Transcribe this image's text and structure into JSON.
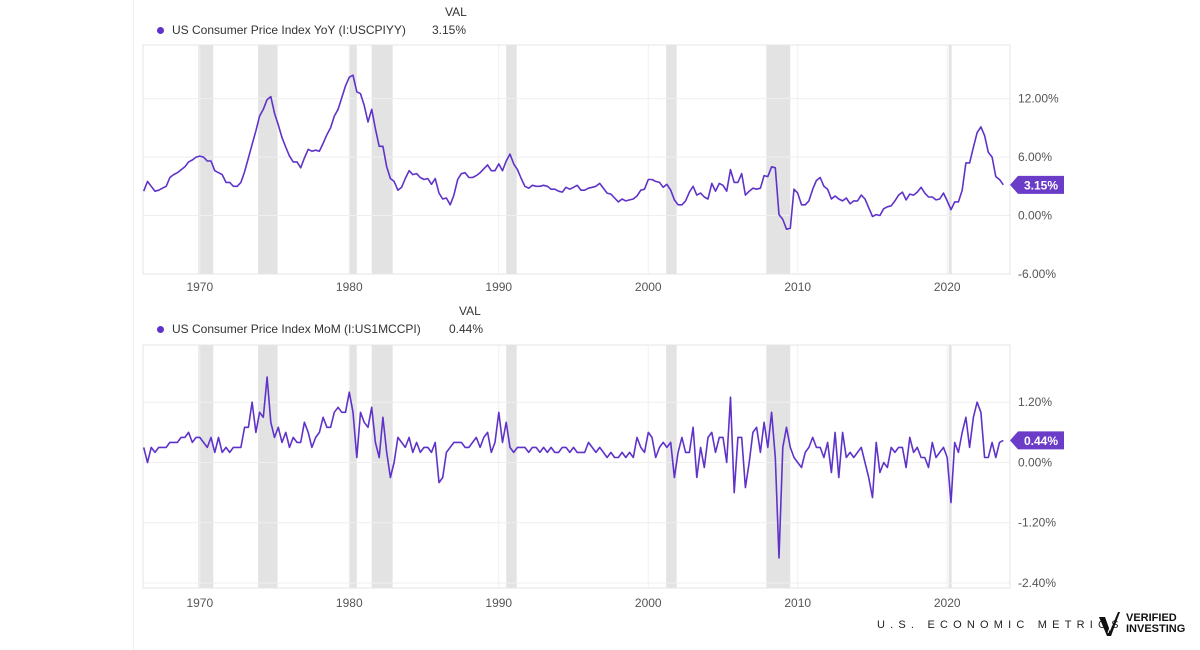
{
  "chart_data": [
    {
      "type": "line",
      "legend_header": "VAL",
      "series": [
        {
          "name": "US Consumer Price Index YoY (I:USCPIYY)",
          "current_value": "3.15%",
          "color": "#5f33c9",
          "x_start": 1966.25,
          "x_step": 0.25,
          "values": [
            2.5,
            3.5,
            3.0,
            2.5,
            2.6,
            2.8,
            3.0,
            3.9,
            4.2,
            4.4,
            4.7,
            5.0,
            5.5,
            5.7,
            6.0,
            6.1,
            6.0,
            5.6,
            5.6,
            4.6,
            4.4,
            4.2,
            3.4,
            3.4,
            3.0,
            3.0,
            3.4,
            4.5,
            5.9,
            7.3,
            8.7,
            10.2,
            10.9,
            11.9,
            12.2,
            10.5,
            9.3,
            8.0,
            7.0,
            6.1,
            5.5,
            5.5,
            4.9,
            5.9,
            6.8,
            6.6,
            6.7,
            6.6,
            7.4,
            8.3,
            9.0,
            10.2,
            10.9,
            12.1,
            13.3,
            14.2,
            14.4,
            12.7,
            12.5,
            11.3,
            9.6,
            10.9,
            8.9,
            7.1,
            7.1,
            5.0,
            3.8,
            3.5,
            2.6,
            2.9,
            3.8,
            4.6,
            4.2,
            4.3,
            3.9,
            3.7,
            3.8,
            3.2,
            3.8,
            2.3,
            1.7,
            1.8,
            1.1,
            2.1,
            3.7,
            4.3,
            4.4,
            3.9,
            3.9,
            4.1,
            4.4,
            4.8,
            5.2,
            4.6,
            4.6,
            5.3,
            4.6,
            5.6,
            6.3,
            5.3,
            4.7,
            3.8,
            3.0,
            2.8,
            3.1,
            3.0,
            3.0,
            3.1,
            3.0,
            2.7,
            2.7,
            2.5,
            2.4,
            2.9,
            2.7,
            2.9,
            3.1,
            2.6,
            2.6,
            2.8,
            2.9,
            3.0,
            3.3,
            2.8,
            2.3,
            2.2,
            1.8,
            1.4,
            1.7,
            1.5,
            1.6,
            1.7,
            2.0,
            2.6,
            2.7,
            3.7,
            3.7,
            3.5,
            3.4,
            2.9,
            3.2,
            2.6,
            1.6,
            1.1,
            1.1,
            1.5,
            2.4,
            3.0,
            2.1,
            2.3,
            1.9,
            1.7,
            3.3,
            2.5,
            3.3,
            3.1,
            2.5,
            4.7,
            3.4,
            3.4,
            4.3,
            2.1,
            2.5,
            2.8,
            2.7,
            2.8,
            4.1,
            4.0,
            5.0,
            4.9,
            0.1,
            -0.4,
            -1.4,
            -1.3,
            2.7,
            2.3,
            1.1,
            1.1,
            1.5,
            2.7,
            3.6,
            3.9,
            3.0,
            2.7,
            1.7,
            2.0,
            1.7,
            1.5,
            1.8,
            1.2,
            1.5,
            1.5,
            2.1,
            1.7,
            0.8,
            -0.1,
            0.1,
            0.0,
            0.7,
            0.9,
            1.0,
            1.5,
            2.1,
            2.4,
            1.6,
            2.2,
            2.1,
            2.4,
            2.9,
            2.3,
            1.9,
            1.9,
            1.6,
            1.7,
            2.3,
            1.5,
            0.6,
            1.4,
            1.4,
            2.6,
            5.4,
            5.4,
            7.0,
            8.5,
            9.1,
            8.2,
            6.5,
            6.0,
            4.0,
            3.7,
            3.15
          ]
        }
      ],
      "xlim": [
        1966.2,
        2024.2
      ],
      "ylim": [
        -6,
        17.5
      ],
      "x_ticks": [
        "1970",
        "1980",
        "1990",
        "2000",
        "2010",
        "2020"
      ],
      "y_ticks": [
        {
          "value": 12,
          "label": "12.00%"
        },
        {
          "value": 6,
          "label": "6.00%"
        },
        {
          "value": 0,
          "label": "0.00%"
        },
        {
          "value": -6,
          "label": "-6.00%"
        }
      ],
      "y_axis_side": "right",
      "grid": true,
      "legend_placement": "top-left",
      "recessions": [
        [
          1969.9,
          1970.9
        ],
        [
          1973.9,
          1975.2
        ],
        [
          1980.0,
          1980.5
        ],
        [
          1981.5,
          1982.9
        ],
        [
          1990.5,
          1991.2
        ],
        [
          2001.2,
          2001.9
        ],
        [
          2007.9,
          2009.5
        ],
        [
          2020.1,
          2020.3
        ]
      ]
    },
    {
      "type": "line",
      "legend_header": "VAL",
      "series": [
        {
          "name": "US Consumer Price Index MoM (I:US1MCCPI)",
          "current_value": "0.44%",
          "color": "#5f33c9",
          "x_start": 1966.25,
          "x_step": 0.25,
          "values": [
            0.3,
            0.0,
            0.3,
            0.2,
            0.3,
            0.3,
            0.3,
            0.4,
            0.4,
            0.4,
            0.5,
            0.5,
            0.6,
            0.4,
            0.5,
            0.5,
            0.4,
            0.3,
            0.5,
            0.2,
            0.5,
            0.2,
            0.3,
            0.2,
            0.3,
            0.3,
            0.3,
            0.7,
            0.7,
            1.2,
            0.6,
            1.0,
            0.9,
            1.7,
            0.8,
            0.5,
            0.7,
            0.4,
            0.6,
            0.3,
            0.5,
            0.4,
            0.4,
            0.8,
            0.6,
            0.3,
            0.5,
            0.6,
            0.9,
            0.7,
            0.7,
            1.0,
            1.1,
            1.0,
            1.0,
            1.4,
            1.0,
            0.1,
            1.0,
            0.8,
            0.7,
            1.1,
            0.4,
            0.1,
            0.9,
            0.2,
            -0.3,
            0.0,
            0.5,
            0.4,
            0.3,
            0.5,
            0.2,
            0.4,
            0.2,
            0.3,
            0.3,
            0.2,
            0.4,
            -0.4,
            -0.3,
            0.2,
            0.3,
            0.4,
            0.4,
            0.4,
            0.3,
            0.3,
            0.4,
            0.5,
            0.3,
            0.5,
            0.6,
            0.2,
            0.4,
            1.0,
            0.4,
            0.8,
            0.3,
            0.2,
            0.3,
            0.3,
            0.3,
            0.2,
            0.3,
            0.3,
            0.2,
            0.3,
            0.2,
            0.3,
            0.2,
            0.2,
            0.3,
            0.3,
            0.2,
            0.3,
            0.2,
            0.2,
            0.2,
            0.4,
            0.3,
            0.2,
            0.3,
            0.2,
            0.1,
            0.2,
            0.1,
            0.1,
            0.2,
            0.1,
            0.2,
            0.1,
            0.5,
            0.3,
            0.2,
            0.6,
            0.5,
            0.1,
            0.3,
            0.4,
            0.3,
            0.4,
            -0.3,
            0.2,
            0.5,
            0.2,
            0.2,
            0.7,
            -0.3,
            0.3,
            -0.1,
            0.5,
            0.6,
            0.2,
            0.5,
            0.5,
            0.0,
            1.3,
            -0.6,
            0.5,
            0.5,
            -0.5,
            0.0,
            0.6,
            0.7,
            0.2,
            0.8,
            0.3,
            1.0,
            0.1,
            -1.9,
            0.3,
            0.7,
            0.3,
            0.1,
            0.0,
            -0.1,
            0.2,
            0.3,
            0.5,
            0.3,
            0.3,
            0.1,
            0.4,
            -0.2,
            0.6,
            -0.3,
            0.6,
            0.1,
            0.2,
            0.1,
            0.2,
            0.3,
            0.0,
            -0.3,
            -0.7,
            0.4,
            -0.2,
            0.0,
            -0.1,
            0.3,
            0.2,
            0.3,
            0.3,
            -0.1,
            0.5,
            0.2,
            0.3,
            0.1,
            0.1,
            -0.1,
            0.4,
            0.1,
            0.2,
            0.3,
            0.1,
            -0.8,
            0.4,
            0.2,
            0.6,
            0.9,
            0.3,
            0.9,
            1.2,
            1.0,
            0.1,
            0.1,
            0.4,
            0.1,
            0.4,
            0.44
          ]
        }
      ],
      "xlim": [
        1966.2,
        2024.2
      ],
      "ylim": [
        -2.5,
        2.34
      ],
      "x_ticks": [
        "1970",
        "1980",
        "1990",
        "2000",
        "2010",
        "2020"
      ],
      "y_ticks": [
        {
          "value": 1.2,
          "label": "1.20%"
        },
        {
          "value": 0,
          "label": "0.00%"
        },
        {
          "value": -1.2,
          "label": "-1.20%"
        },
        {
          "value": -2.4,
          "label": "-2.40%"
        }
      ],
      "y_axis_side": "right",
      "grid": true,
      "legend_placement": "top-left",
      "recessions": [
        [
          1969.9,
          1970.9
        ],
        [
          1973.9,
          1975.2
        ],
        [
          1980.0,
          1980.5
        ],
        [
          1981.5,
          1982.9
        ],
        [
          1990.5,
          1991.2
        ],
        [
          2001.2,
          2001.9
        ],
        [
          2007.9,
          2009.5
        ],
        [
          2020.1,
          2020.3
        ]
      ]
    }
  ],
  "footer": {
    "brand_text": "U.S. ECONOMIC METRICS",
    "logo_text": "VERIFIED INVESTING"
  }
}
